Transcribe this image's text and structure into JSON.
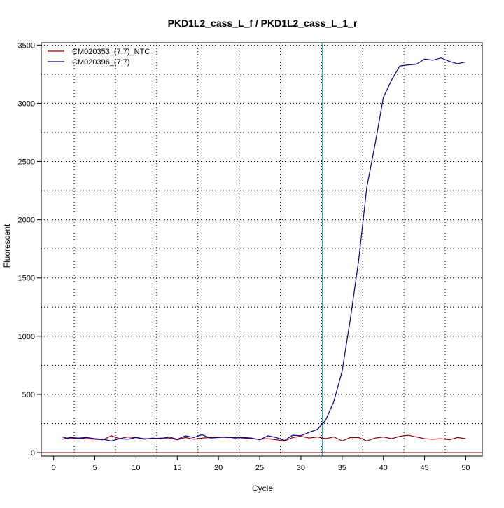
{
  "chart_data": {
    "type": "line",
    "title": "PKD1L2_cass_L_f / PKD1L2_cass_L_1_r",
    "xlabel": "Cycle",
    "ylabel": "Fluorescent",
    "xlim": [
      -1.5,
      52
    ],
    "ylim": [
      -30,
      3520
    ],
    "x_ticks": [
      0,
      5,
      10,
      15,
      20,
      25,
      30,
      35,
      40,
      45,
      50
    ],
    "y_ticks": [
      0,
      500,
      1000,
      1500,
      2000,
      2500,
      3000,
      3500
    ],
    "grid": true,
    "legend_position": "top-left",
    "x": [
      1,
      2,
      3,
      4,
      5,
      6,
      7,
      8,
      9,
      10,
      11,
      12,
      13,
      14,
      15,
      16,
      17,
      18,
      19,
      20,
      21,
      22,
      23,
      24,
      25,
      26,
      27,
      28,
      29,
      30,
      31,
      32,
      33,
      34,
      35,
      36,
      37,
      38,
      39,
      40,
      41,
      42,
      43,
      44,
      45,
      46,
      47,
      48,
      49,
      50
    ],
    "series": [
      {
        "name": "CM020353_(7:7)_NTC",
        "color": "#8b0000",
        "values": [
          135,
          120,
          125,
          120,
          115,
          110,
          145,
          120,
          135,
          130,
          120,
          120,
          125,
          125,
          110,
          130,
          115,
          125,
          130,
          135,
          130,
          130,
          125,
          120,
          115,
          120,
          110,
          100,
          130,
          140,
          125,
          135,
          120,
          135,
          100,
          130,
          130,
          100,
          125,
          135,
          120,
          140,
          150,
          135,
          120,
          115,
          120,
          110,
          130,
          120
        ]
      },
      {
        "name": "CM020396_(7:7)",
        "color": "#00008b",
        "values": [
          115,
          130,
          125,
          130,
          120,
          115,
          100,
          120,
          115,
          130,
          115,
          125,
          120,
          135,
          115,
          145,
          130,
          155,
          125,
          130,
          135,
          125,
          130,
          125,
          110,
          145,
          130,
          105,
          150,
          145,
          175,
          200,
          280,
          440,
          700,
          1150,
          1650,
          2280,
          2650,
          3050,
          3200,
          3320,
          3330,
          3335,
          3380,
          3370,
          3390,
          3360,
          3340,
          3355
        ]
      }
    ],
    "threshold_x": 32.6,
    "threshold_color": "#00bcd4",
    "baseline_color": "#8b0000"
  }
}
